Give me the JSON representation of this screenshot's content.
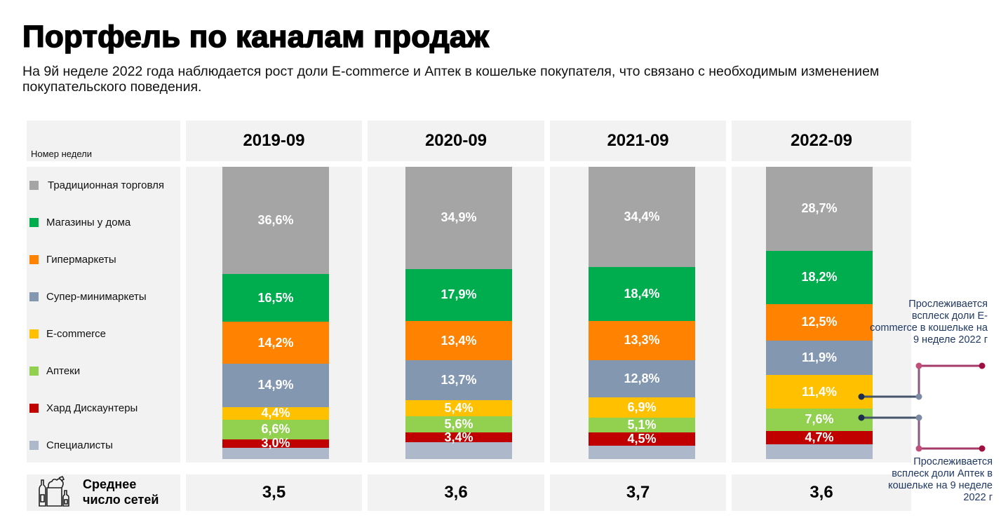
{
  "header": {
    "title": "Портфель по каналам продаж",
    "subtitle": "На 9й неделе 2022 года наблюдается рост доли E-commerce и Аптек в кошельке покупателя, что связано с необходимым изменением покупательского поведения."
  },
  "table": {
    "week_label": "Номер недели",
    "avg_label_line1": "Среднее",
    "avg_label_line2": "число сетей",
    "avg_icon": "grocery-bag-icon"
  },
  "chart_data": {
    "type": "bar",
    "stacked": true,
    "title": "Портфель по каналам продаж",
    "categories": [
      "2019-09",
      "2020-09",
      "2021-09",
      "2022-09"
    ],
    "ylim": [
      0,
      100
    ],
    "legend_position": "left",
    "series": [
      {
        "name": "Традиционная торговля",
        "color": "#a5a5a5",
        "values": [
          36.6,
          34.9,
          34.4,
          28.7
        ],
        "labels": [
          "36,6%",
          "34,9%",
          "34,4%",
          "28,7%"
        ]
      },
      {
        "name": "Магазины у дома",
        "color": "#00ad4e",
        "values": [
          16.5,
          17.9,
          18.4,
          18.2
        ],
        "labels": [
          "16,5%",
          "17,9%",
          "18,4%",
          "18,2%"
        ]
      },
      {
        "name": "Гипермаркеты",
        "color": "#ff8200",
        "values": [
          14.2,
          13.4,
          13.3,
          12.5
        ],
        "labels": [
          "14,2%",
          "13,4%",
          "13,3%",
          "12,5%"
        ]
      },
      {
        "name": "Супер-минимаркеты",
        "color": "#8497b0",
        "values": [
          14.9,
          13.7,
          12.8,
          11.9
        ],
        "labels": [
          "14,9%",
          "13,7%",
          "12,8%",
          "11,9%"
        ]
      },
      {
        "name": "E-commerce",
        "color": "#ffc000",
        "values": [
          4.4,
          5.4,
          6.9,
          11.4
        ],
        "labels": [
          "4,4%",
          "5,4%",
          "6,9%",
          "11,4%"
        ]
      },
      {
        "name": "Аптеки",
        "color": "#92d050",
        "values": [
          6.6,
          5.6,
          5.1,
          7.6
        ],
        "labels": [
          "6,6%",
          "5,6%",
          "5,1%",
          "7,6%"
        ]
      },
      {
        "name": "Хард Дискаунтеры",
        "color": "#c00000",
        "values": [
          3.0,
          3.4,
          4.5,
          4.7
        ],
        "labels": [
          "3,0%",
          "3,4%",
          "4,5%",
          "4,7%"
        ]
      },
      {
        "name": "Специалисты",
        "color": "#adb9ca",
        "values": [
          3.8,
          5.7,
          4.6,
          5.0
        ],
        "labels": [
          "",
          "",
          "",
          ""
        ]
      }
    ],
    "average_chains": [
      "3,5",
      "3,6",
      "3,7",
      "3,6"
    ],
    "annotations": [
      {
        "text": "Прослеживается всплеск доли E-commerce  в кошельке на 9 неделе 2022 г",
        "target": "E-commerce 2022-09"
      },
      {
        "text": "Прослеживается всплеск доли Аптек в кошельке на 9 неделе 2022 г",
        "target": "Аптеки 2022-09"
      }
    ]
  }
}
